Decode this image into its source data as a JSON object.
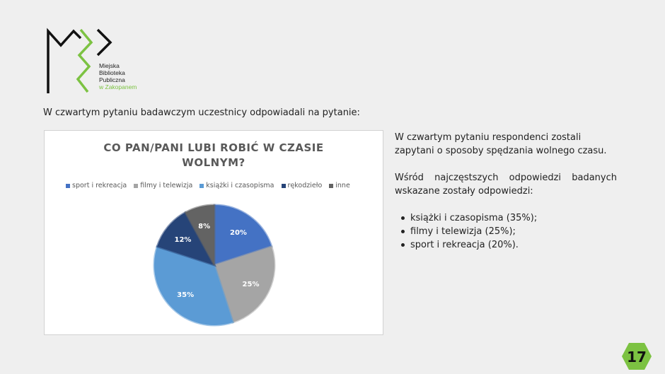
{
  "logo": {
    "line1": "Miejska",
    "line2": "Biblioteka",
    "line3": "Publiczna",
    "line4": "w Zakopanem",
    "colors": {
      "black": "#111111",
      "green": "#7cc242"
    }
  },
  "intro_text": "W czwartym pytaniu badawczym uczestnicy odpowiadali na pytanie:",
  "chart_data": {
    "type": "pie",
    "title_line1": "CO PAN/PANI LUBI ROBIĆ W CZASIE",
    "title_line2": "WOLNYM?",
    "categories": [
      "sport i rekreacja",
      "filmy i telewizja",
      "książki i czasopisma",
      "rękodzieło",
      "inne"
    ],
    "values": [
      20,
      25,
      35,
      12,
      8
    ],
    "labels": [
      "20%",
      "25%",
      "35%",
      "12%",
      "8%"
    ],
    "colors": [
      "#4472c4",
      "#a5a5a5",
      "#5b9bd5",
      "#264478",
      "#636363"
    ],
    "legend_position": "top"
  },
  "right": {
    "p1": "W czwartym pytaniu respondenci zostali zapytani o sposoby spędzania wolnego czasu.",
    "p2_line1": "Wśród najczęstszych odpowiedzi badanych",
    "p2_line2": "wskazane zostały odpowiedzi:",
    "bullets": [
      "książki i czasopisma (35%);",
      "filmy i telewizja (25%);",
      "sport i rekreacja (20%)."
    ]
  },
  "page_number": "17",
  "page_badge_color": "#7cc242"
}
